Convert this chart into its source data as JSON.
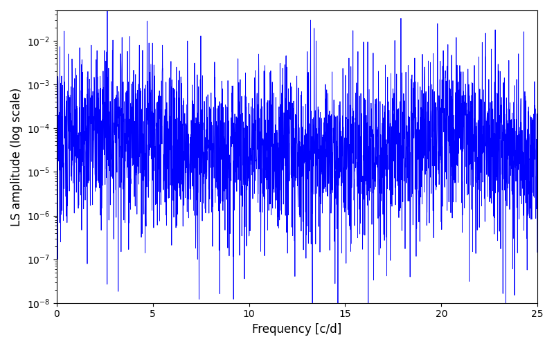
{
  "xlabel": "Frequency [c/d]",
  "ylabel": "LS amplitude (log scale)",
  "title": "",
  "line_color": "#0000ff",
  "background_color": "#ffffff",
  "xmin": 0,
  "xmax": 25,
  "ymin": 1e-08,
  "ymax": 0.05,
  "n_points": 3000,
  "seed": 7,
  "figsize": [
    8.0,
    5.0
  ],
  "dpi": 100
}
